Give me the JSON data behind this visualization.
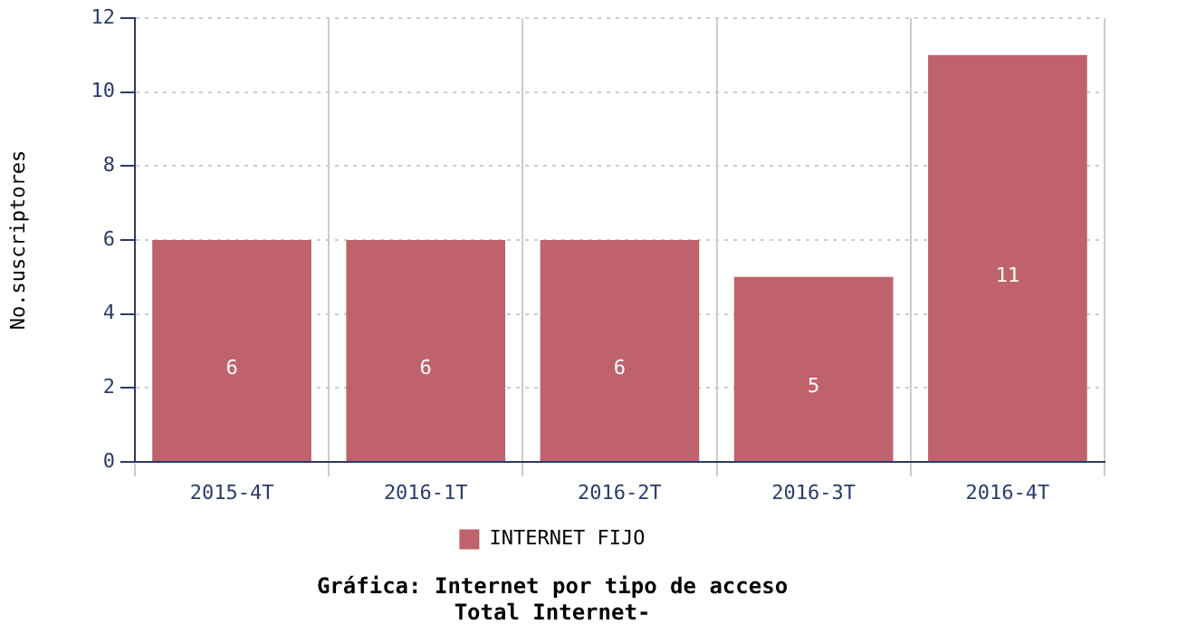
{
  "chart_data": {
    "type": "bar",
    "title": "Gráfica: Internet por tipo de acceso",
    "subtitle": "Total Internet-",
    "ylabel": "No.suscriptores",
    "categories": [
      "2015-4T",
      "2016-1T",
      "2016-2T",
      "2016-3T",
      "2016-4T"
    ],
    "series": [
      {
        "name": "INTERNET FIJO",
        "color": "#bf626b",
        "values": [
          6,
          6,
          6,
          5,
          11
        ]
      }
    ],
    "ylim": [
      0,
      12
    ],
    "yticks": [
      0,
      2,
      4,
      6,
      8,
      10,
      12
    ],
    "grid": true,
    "legend": "bottom",
    "data_labels": true
  }
}
